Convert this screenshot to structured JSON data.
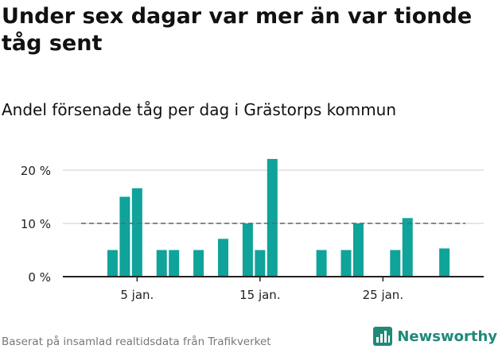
{
  "header": {
    "title": "Under sex dagar var mer än var tionde tåg sent",
    "subtitle": "Andel försenade tåg per dag i Grästorps kommun"
  },
  "footer": {
    "source": "Baserat på insamlad realtidsdata från Trafikverket",
    "brand": "Newsworthy"
  },
  "colors": {
    "bar": "#0fa39a",
    "grid": "#dddddd",
    "axis": "#222222",
    "reference_line": "#666666",
    "brand": "#1f8a78"
  },
  "icons": {
    "brand_logo": "bar-chart-logo-icon"
  },
  "chart_data": {
    "type": "bar",
    "x": [
      "2 jan.",
      "3 jan.",
      "4 jan.",
      "5 jan.",
      "6 jan.",
      "7 jan.",
      "8 jan.",
      "9 jan.",
      "10 jan.",
      "11 jan.",
      "12 jan.",
      "13 jan.",
      "14 jan.",
      "15 jan.",
      "16 jan.",
      "17 jan.",
      "18 jan.",
      "19 jan.",
      "20 jan.",
      "21 jan.",
      "22 jan.",
      "23 jan.",
      "24 jan.",
      "25 jan.",
      "26 jan.",
      "27 jan.",
      "28 jan.",
      "29 jan.",
      "30 jan.",
      "31 jan."
    ],
    "values": [
      0,
      5,
      15,
      16.6,
      0,
      5,
      5,
      0,
      5,
      0,
      7.1,
      0,
      10,
      5,
      22.1,
      0,
      0,
      0,
      5,
      0,
      5,
      10,
      0,
      0,
      5,
      11,
      0,
      0,
      5.3,
      0
    ],
    "reference_value": 10,
    "reference_style": "dashed",
    "xticks": [
      "5 jan.",
      "15 jan.",
      "25 jan."
    ],
    "yticks": [
      "0 %",
      "10 %",
      "20 %"
    ],
    "ytick_values": [
      0,
      10,
      20
    ],
    "ylim": [
      0,
      22.1
    ],
    "grid": "horizontal"
  }
}
